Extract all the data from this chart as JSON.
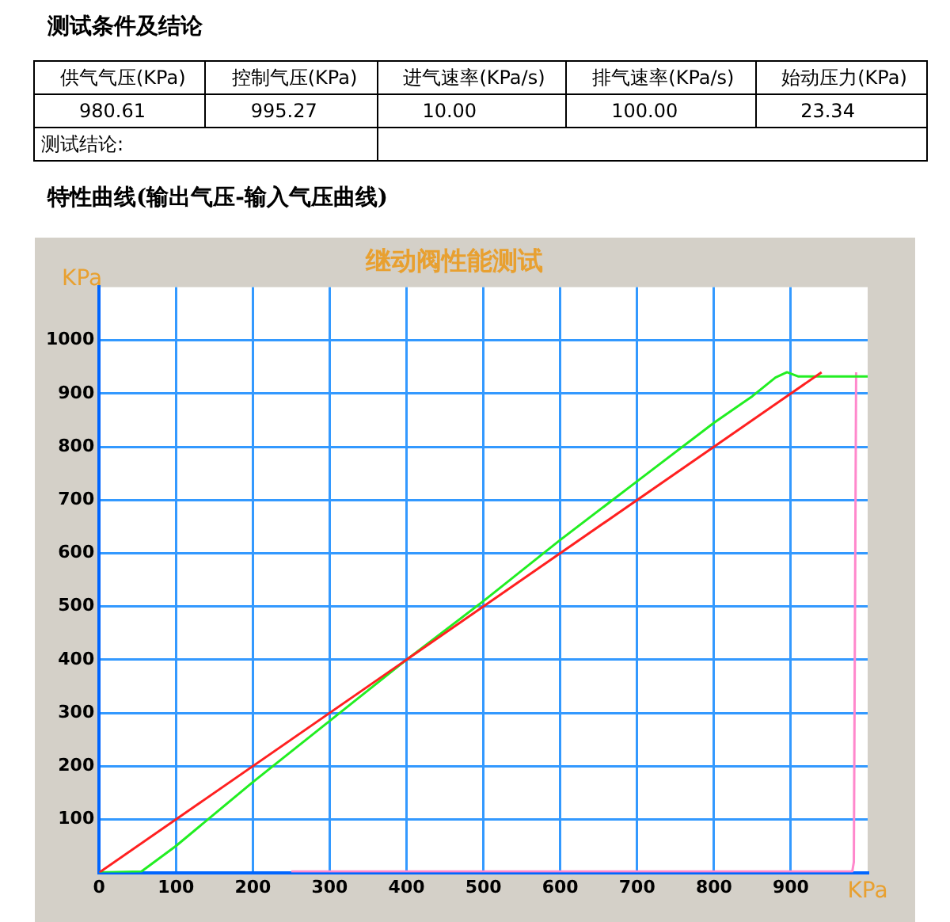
{
  "chart_data": {
    "type": "line",
    "title": "继动阀性能测试",
    "xlabel": "KPa",
    "ylabel": "KPa",
    "annotations": [
      "测试条件及结论",
      "供气气压(KPa)",
      "控制气压(KPa)",
      "进气速率(KPa/s)",
      "排气速率(KPa/s)",
      "始动压力(KPa)",
      "980.61",
      "995.27",
      "10.00",
      "100.00",
      "23.34",
      "测试结论:",
      "特性曲线(输出气压-输入气压曲线)"
    ],
    "series": [
      {
        "color": "#ff2020",
        "x": [
          0,
          940
        ],
        "values": [
          0,
          940
        ]
      },
      {
        "color": "#22ee22",
        "x": [
          0,
          55,
          100,
          200,
          300,
          400,
          500,
          600,
          700,
          800,
          850,
          880,
          895,
          910,
          1000
        ],
        "values": [
          0,
          2,
          50,
          170,
          285,
          400,
          510,
          625,
          735,
          845,
          895,
          930,
          940,
          932,
          932
        ]
      },
      {
        "color": "#ff88cc",
        "x": [
          250,
          980,
          982,
          985
        ],
        "values": [
          2,
          2,
          20,
          940
        ]
      }
    ],
    "xlim": [
      0,
      1000
    ],
    "ylim": [
      0,
      1100
    ],
    "xticks": [
      0,
      100,
      200,
      300,
      400,
      500,
      600,
      700,
      800,
      900
    ],
    "yticks": [
      100,
      200,
      300,
      400,
      500,
      600,
      700,
      800,
      900,
      1000
    ],
    "grid": true,
    "legend": false,
    "marker": "none",
    "line_style": "solid"
  }
}
